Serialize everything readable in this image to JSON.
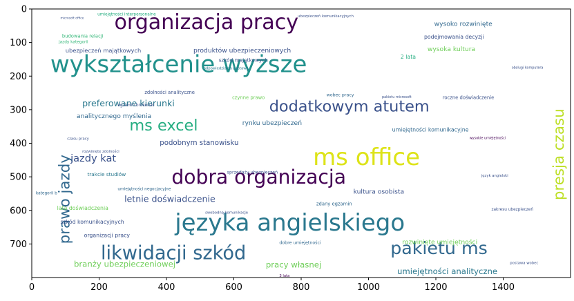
{
  "chart_data": {
    "type": "wordcloud",
    "title": "",
    "xlabel": "",
    "ylabel": "",
    "xlim": [
      0,
      1600
    ],
    "ylim": [
      800,
      0
    ],
    "x_ticks": [
      "0",
      "200",
      "400",
      "600",
      "800",
      "1000",
      "1200",
      "1400"
    ],
    "y_ticks": [
      "0",
      "100",
      "200",
      "300",
      "400",
      "500",
      "600",
      "700"
    ],
    "words": [
      {
        "text": "organizacja pracy",
        "x": 245,
        "y": 60,
        "size": 62,
        "color": "#440154",
        "rotate": 0
      },
      {
        "text": "wykształcenie wyższe",
        "x": 55,
        "y": 188,
        "size": 70,
        "color": "#21918c",
        "rotate": 0
      },
      {
        "text": "dodatkowym atutem",
        "x": 705,
        "y": 305,
        "size": 46,
        "color": "#3b528b",
        "rotate": 0
      },
      {
        "text": "ms excel",
        "x": 290,
        "y": 362,
        "size": 46,
        "color": "#26ad81",
        "rotate": 0
      },
      {
        "text": "ms office",
        "x": 835,
        "y": 465,
        "size": 70,
        "color": "#dde318",
        "rotate": 0
      },
      {
        "text": "dobra organizacja",
        "x": 415,
        "y": 520,
        "size": 58,
        "color": "#440154",
        "rotate": 0
      },
      {
        "text": "języka angielskiego",
        "x": 425,
        "y": 660,
        "size": 70,
        "color": "#2a788e",
        "rotate": 0
      },
      {
        "text": "likwidacji szkód",
        "x": 205,
        "y": 745,
        "size": 56,
        "color": "#31688e",
        "rotate": 0
      },
      {
        "text": "pakietu ms",
        "x": 1065,
        "y": 730,
        "size": 52,
        "color": "#31688e",
        "rotate": 0
      },
      {
        "text": "prawo jazdy",
        "x": 112,
        "y": 700,
        "size": 44,
        "color": "#31688e",
        "rotate": -90
      },
      {
        "text": "presja czasu",
        "x": 1580,
        "y": 570,
        "size": 44,
        "color": "#bddf26",
        "rotate": -90
      },
      {
        "text": "preferowane kierunki",
        "x": 150,
        "y": 290,
        "size": 26,
        "color": "#2a788e",
        "rotate": 0
      },
      {
        "text": "jazdy kat",
        "x": 115,
        "y": 455,
        "size": 30,
        "color": "#3b528b",
        "rotate": 0
      },
      {
        "text": "letnie doświadczenie",
        "x": 275,
        "y": 575,
        "size": 26,
        "color": "#3b528b",
        "rotate": 0
      },
      {
        "text": "branży ubezpieczeniowej",
        "x": 125,
        "y": 768,
        "size": 24,
        "color": "#6ece58",
        "rotate": 0
      },
      {
        "text": "pracy własnej",
        "x": 695,
        "y": 770,
        "size": 24,
        "color": "#6ece58",
        "rotate": 0
      },
      {
        "text": "umiejętności analityczne",
        "x": 1085,
        "y": 790,
        "size": 24,
        "color": "#2a788e",
        "rotate": 0
      },
      {
        "text": "podobnym stanowisku",
        "x": 380,
        "y": 405,
        "size": 21,
        "color": "#3b528b",
        "rotate": 0
      },
      {
        "text": "analitycznego myślenia",
        "x": 133,
        "y": 325,
        "size": 19,
        "color": "#31688e",
        "rotate": 0
      },
      {
        "text": "rynku ubezpieczeń",
        "x": 625,
        "y": 345,
        "size": 19,
        "color": "#31688e",
        "rotate": 0
      },
      {
        "text": "wysoko rozwinięte",
        "x": 1195,
        "y": 50,
        "size": 19,
        "color": "#31688e",
        "rotate": 0
      },
      {
        "text": "produktów ubezpieczeniowych",
        "x": 480,
        "y": 130,
        "size": 19,
        "color": "#3b528b",
        "rotate": 0
      },
      {
        "text": "ubezpieczeń majątkowych",
        "x": 100,
        "y": 130,
        "size": 17,
        "color": "#3b528b",
        "rotate": 0
      },
      {
        "text": "budowania relacji",
        "x": 90,
        "y": 85,
        "size": 14,
        "color": "#35b779",
        "rotate": 0
      },
      {
        "text": "podejmowania decyzji",
        "x": 1165,
        "y": 88,
        "size": 16,
        "color": "#3b528b",
        "rotate": 0
      },
      {
        "text": "wysoka kultura",
        "x": 1175,
        "y": 125,
        "size": 19,
        "color": "#6ece58",
        "rotate": 0
      },
      {
        "text": "2 lata",
        "x": 1095,
        "y": 148,
        "size": 16,
        "color": "#26ad81",
        "rotate": 0
      },
      {
        "text": "szkód majątkowych",
        "x": 555,
        "y": 157,
        "size": 15,
        "color": "#3b528b",
        "rotate": 0
      },
      {
        "text": "zdolności analityczne",
        "x": 335,
        "y": 253,
        "size": 14,
        "color": "#3b528b",
        "rotate": 0
      },
      {
        "text": "czynne prawo",
        "x": 595,
        "y": 268,
        "size": 14,
        "color": "#6ece58",
        "rotate": 0
      },
      {
        "text": "wobec pracy",
        "x": 875,
        "y": 260,
        "size": 13,
        "color": "#31688e",
        "rotate": 0
      },
      {
        "text": "roczne doświadczenie",
        "x": 1220,
        "y": 268,
        "size": 14,
        "color": "#3b528b",
        "rotate": 0
      },
      {
        "text": "umiejętności komunikacyjne",
        "x": 1070,
        "y": 365,
        "size": 16,
        "color": "#31688e",
        "rotate": 0
      },
      {
        "text": "trakcie studiów",
        "x": 165,
        "y": 498,
        "size": 15,
        "color": "#2a788e",
        "rotate": 0
      },
      {
        "text": "sprzedaży ubezpieczeń",
        "x": 580,
        "y": 490,
        "size": 13,
        "color": "#3b528b",
        "rotate": 0
      },
      {
        "text": "kultura osobista",
        "x": 955,
        "y": 550,
        "size": 19,
        "color": "#3b528b",
        "rotate": 0
      },
      {
        "text": "lata doświadczenia",
        "x": 75,
        "y": 598,
        "size": 16,
        "color": "#6ece58",
        "rotate": 0
      },
      {
        "text": "szkód komunikacyjnych",
        "x": 85,
        "y": 640,
        "size": 16,
        "color": "#3b528b",
        "rotate": 0
      },
      {
        "text": "organizacji pracy",
        "x": 155,
        "y": 680,
        "size": 16,
        "color": "#3b528b",
        "rotate": 0
      },
      {
        "text": "zdany egzamin",
        "x": 845,
        "y": 585,
        "size": 14,
        "color": "#31688e",
        "rotate": 0
      },
      {
        "text": "rozwinięte umiejętności",
        "x": 1100,
        "y": 700,
        "size": 19,
        "color": "#6ece58",
        "rotate": 0
      },
      {
        "text": "dobre umiejętności",
        "x": 735,
        "y": 700,
        "size": 13,
        "color": "#31688e",
        "rotate": 0
      },
      {
        "text": "kategorii b",
        "x": 12,
        "y": 552,
        "size": 12,
        "color": "#31688e",
        "rotate": 0
      },
      {
        "text": "umiejętności negocjacyjne",
        "x": 255,
        "y": 540,
        "size": 12,
        "color": "#31688e",
        "rotate": 0
      },
      {
        "text": "rozwinięte zdolności",
        "x": 150,
        "y": 428,
        "size": 11,
        "color": "#3b528b",
        "rotate": 0
      },
      {
        "text": "czasu pracy",
        "x": 105,
        "y": 390,
        "size": 11,
        "color": "#3b528b",
        "rotate": 0
      },
      {
        "text": "zakresu ubezpieczeń",
        "x": 1365,
        "y": 600,
        "size": 12,
        "color": "#3b528b",
        "rotate": 0
      },
      {
        "text": "postawa wobec",
        "x": 1420,
        "y": 760,
        "size": 11,
        "color": "#3b528b",
        "rotate": 0
      },
      {
        "text": "wysokie umiejętności",
        "x": 1300,
        "y": 388,
        "size": 10,
        "color": "#440154",
        "rotate": 0
      },
      {
        "text": "język angielski",
        "x": 1335,
        "y": 500,
        "size": 11,
        "color": "#3b528b",
        "rotate": 0
      },
      {
        "text": "egzamin brokerski",
        "x": 255,
        "y": 290,
        "size": 12,
        "color": "#3b528b",
        "rotate": 0
      },
      {
        "text": "ubezpieczeń komunikacyjnych",
        "x": 790,
        "y": 25,
        "size": 11,
        "color": "#3b528b",
        "rotate": 0
      },
      {
        "text": "umiejętności interpersonalne",
        "x": 195,
        "y": 20,
        "size": 12,
        "color": "#26ad81",
        "rotate": 0
      },
      {
        "text": "microsoft office",
        "x": 85,
        "y": 30,
        "size": 9,
        "color": "#3b528b",
        "rotate": 0
      },
      {
        "text": "jazdy kategorii",
        "x": 80,
        "y": 102,
        "size": 12,
        "color": "#35b779",
        "rotate": 0
      },
      {
        "text": "odpowiedzialna postawa",
        "x": 510,
        "y": 180,
        "size": 11,
        "color": "#2a788e",
        "rotate": 0
      },
      {
        "text": "pakietu microsoft",
        "x": 1040,
        "y": 265,
        "size": 10,
        "color": "#3b528b",
        "rotate": 0
      },
      {
        "text": "obsługi komputera",
        "x": 1425,
        "y": 178,
        "size": 10,
        "color": "#3b528b",
        "rotate": 0
      },
      {
        "text": "swobodną komunikacje",
        "x": 515,
        "y": 610,
        "size": 11,
        "color": "#3b528b",
        "rotate": 0
      },
      {
        "text": "3 lata",
        "x": 735,
        "y": 798,
        "size": 11,
        "color": "#440154",
        "rotate": 0
      }
    ]
  }
}
